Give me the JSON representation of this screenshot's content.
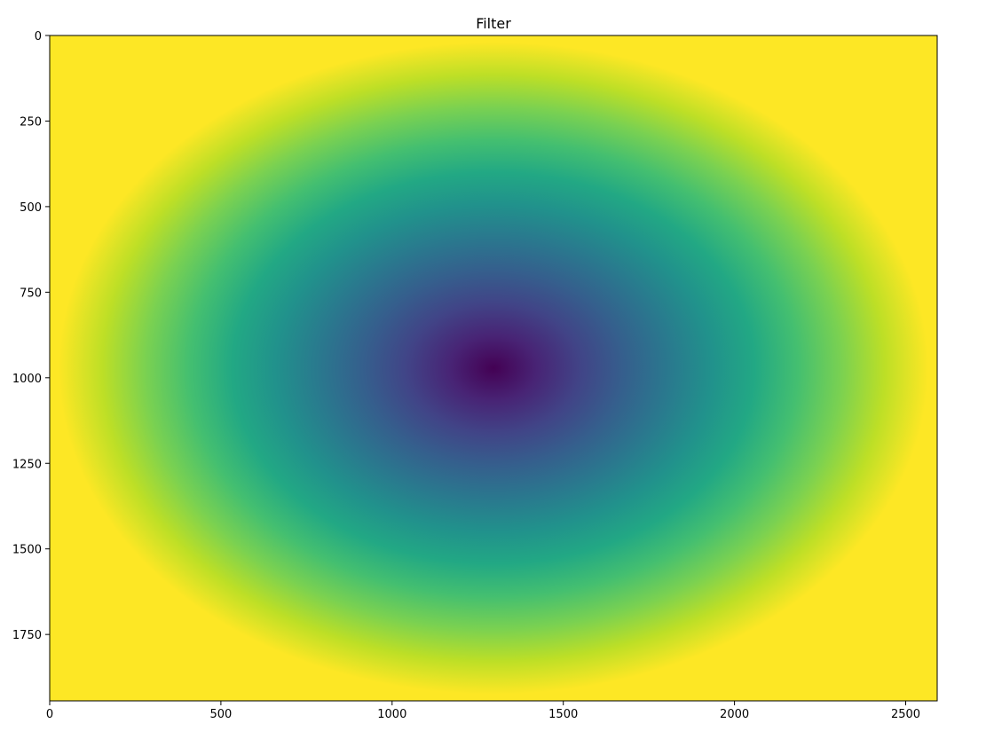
{
  "chart_data": {
    "type": "heatmap",
    "title": "Filter",
    "xlabel": "",
    "ylabel": "",
    "xlim": [
      0,
      2592
    ],
    "ylim": [
      1944,
      0
    ],
    "x_ticks": [
      0,
      500,
      1000,
      1500,
      2000,
      2500
    ],
    "y_ticks": [
      0,
      250,
      500,
      750,
      1000,
      1250,
      1500,
      1750
    ],
    "x_tick_labels": [
      "0",
      "500",
      "1000",
      "1500",
      "2000",
      "2500"
    ],
    "y_tick_labels": [
      "0",
      "250",
      "500",
      "750",
      "1000",
      "1250",
      "1500",
      "1750"
    ],
    "colormap": "viridis",
    "center": [
      1296,
      972
    ],
    "description_values": {
      "min_at_center": 0.0,
      "max_at_edges": 1.0
    },
    "grid": false
  }
}
